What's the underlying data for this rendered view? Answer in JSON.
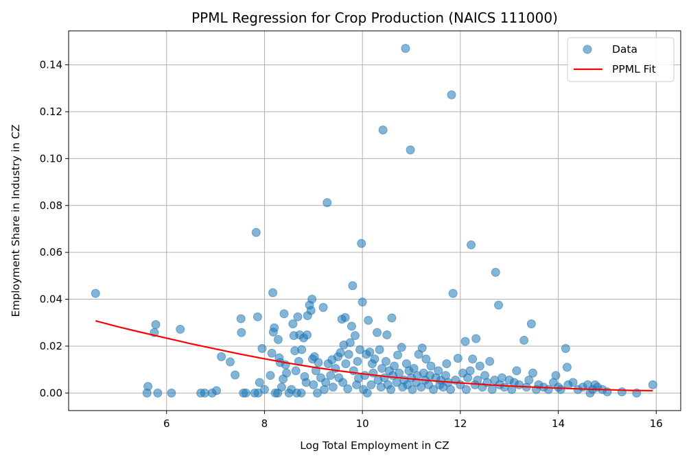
{
  "chart_data": {
    "type": "scatter",
    "title": "PPML Regression for Crop Production (NAICS 111000)",
    "xlabel": "Log Total Employment in CZ",
    "ylabel": "Employment Share in Industry in CZ",
    "xlim": [
      4.0,
      16.5
    ],
    "ylim": [
      -0.0075,
      0.1545
    ],
    "xticks": [
      6,
      8,
      10,
      12,
      14,
      16
    ],
    "xtick_labels": [
      "6",
      "8",
      "10",
      "12",
      "14",
      "16"
    ],
    "yticks": [
      0.0,
      0.02,
      0.04,
      0.06,
      0.08,
      0.1,
      0.12,
      0.14
    ],
    "ytick_labels": [
      "0.00",
      "0.02",
      "0.04",
      "0.06",
      "0.08",
      "0.10",
      "0.12",
      "0.14"
    ],
    "grid": true,
    "legend": {
      "position": "top-right",
      "entries": [
        {
          "label": "Data",
          "marker": "circle",
          "color": "#1f77b4"
        },
        {
          "label": "PPML Fit",
          "marker": "line",
          "color": "#ff0000"
        }
      ]
    },
    "series": [
      {
        "name": "Data",
        "color": "#1f77b4",
        "opacity": 0.55,
        "points": [
          [
            4.55,
            0.0425
          ],
          [
            5.62,
            0.0028
          ],
          [
            5.6,
            0.0
          ],
          [
            5.75,
            0.0258
          ],
          [
            5.78,
            0.0292
          ],
          [
            5.82,
            0.0
          ],
          [
            6.1,
            0.0
          ],
          [
            6.28,
            0.0272
          ],
          [
            6.7,
            0.0
          ],
          [
            6.78,
            0.0
          ],
          [
            6.93,
            0.0
          ],
          [
            7.02,
            0.001
          ],
          [
            7.12,
            0.0155
          ],
          [
            7.3,
            0.0133
          ],
          [
            7.4,
            0.0077
          ],
          [
            7.52,
            0.0317
          ],
          [
            7.53,
            0.0258
          ],
          [
            7.57,
            0.0
          ],
          [
            7.62,
            0.0
          ],
          [
            7.8,
            0.0
          ],
          [
            7.83,
            0.0685
          ],
          [
            7.86,
            0.0325
          ],
          [
            7.87,
            0.0
          ],
          [
            7.9,
            0.0045
          ],
          [
            7.95,
            0.019
          ],
          [
            8.0,
            0.0015
          ],
          [
            8.12,
            0.0075
          ],
          [
            8.15,
            0.017
          ],
          [
            8.17,
            0.0428
          ],
          [
            8.18,
            0.026
          ],
          [
            8.2,
            0.0278
          ],
          [
            8.22,
            0.0
          ],
          [
            8.27,
            0.0
          ],
          [
            8.28,
            0.0228
          ],
          [
            8.3,
            0.015
          ],
          [
            8.32,
            0.013
          ],
          [
            8.35,
            0.0025
          ],
          [
            8.38,
            0.006
          ],
          [
            8.4,
            0.0338
          ],
          [
            8.43,
            0.012
          ],
          [
            8.45,
            0.0085
          ],
          [
            8.5,
            0.0
          ],
          [
            8.55,
            0.0015
          ],
          [
            8.58,
            0.0295
          ],
          [
            8.6,
            0.0245
          ],
          [
            8.62,
            0.018
          ],
          [
            8.64,
            0.0095
          ],
          [
            8.66,
            0.0
          ],
          [
            8.68,
            0.0325
          ],
          [
            8.7,
            0.0135
          ],
          [
            8.72,
            0.0248
          ],
          [
            8.75,
            0.0
          ],
          [
            8.76,
            0.0185
          ],
          [
            8.8,
            0.0235
          ],
          [
            8.82,
            0.007
          ],
          [
            8.85,
            0.0045
          ],
          [
            8.87,
            0.0248
          ],
          [
            8.88,
            0.033
          ],
          [
            8.92,
            0.0375
          ],
          [
            8.95,
            0.0352
          ],
          [
            8.97,
            0.04
          ],
          [
            8.98,
            0.0145
          ],
          [
            9.0,
            0.0035
          ],
          [
            9.02,
            0.0155
          ],
          [
            9.05,
            0.0095
          ],
          [
            9.08,
            0.0
          ],
          [
            9.1,
            0.013
          ],
          [
            9.15,
            0.0065
          ],
          [
            9.2,
            0.0365
          ],
          [
            9.22,
            0.0015
          ],
          [
            9.25,
            0.0045
          ],
          [
            9.28,
            0.0812
          ],
          [
            9.3,
            0.0125
          ],
          [
            9.35,
            0.0075
          ],
          [
            9.38,
            0.0142
          ],
          [
            9.4,
            0.0025
          ],
          [
            9.45,
            0.0105
          ],
          [
            9.5,
            0.0155
          ],
          [
            9.52,
            0.0065
          ],
          [
            9.55,
            0.0172
          ],
          [
            9.58,
            0.0315
          ],
          [
            9.6,
            0.0045
          ],
          [
            9.62,
            0.0205
          ],
          [
            9.65,
            0.0322
          ],
          [
            9.66,
            0.0125
          ],
          [
            9.7,
            0.0018
          ],
          [
            9.72,
            0.0165
          ],
          [
            9.75,
            0.0215
          ],
          [
            9.78,
            0.0285
          ],
          [
            9.8,
            0.0458
          ],
          [
            9.82,
            0.0095
          ],
          [
            9.85,
            0.0245
          ],
          [
            9.88,
            0.0035
          ],
          [
            9.9,
            0.0135
          ],
          [
            9.92,
            0.0062
          ],
          [
            9.95,
            0.0185
          ],
          [
            9.98,
            0.0638
          ],
          [
            10.0,
            0.0388
          ],
          [
            10.02,
            0.0015
          ],
          [
            10.05,
            0.0075
          ],
          [
            10.08,
            0.0165
          ],
          [
            10.1,
            0.0
          ],
          [
            10.12,
            0.031
          ],
          [
            10.15,
            0.0175
          ],
          [
            10.18,
            0.0035
          ],
          [
            10.2,
            0.0125
          ],
          [
            10.22,
            0.0085
          ],
          [
            10.25,
            0.0145
          ],
          [
            10.3,
            0.0258
          ],
          [
            10.32,
            0.0055
          ],
          [
            10.35,
            0.0185
          ],
          [
            10.38,
            0.0025
          ],
          [
            10.4,
            0.0105
          ],
          [
            10.42,
            0.1122
          ],
          [
            10.45,
            0.0065
          ],
          [
            10.48,
            0.0135
          ],
          [
            10.5,
            0.0248
          ],
          [
            10.52,
            0.0035
          ],
          [
            10.55,
            0.0095
          ],
          [
            10.58,
            0.0015
          ],
          [
            10.6,
            0.032
          ],
          [
            10.62,
            0.0075
          ],
          [
            10.65,
            0.0115
          ],
          [
            10.7,
            0.0045
          ],
          [
            10.72,
            0.0162
          ],
          [
            10.75,
            0.0085
          ],
          [
            10.8,
            0.0195
          ],
          [
            10.82,
            0.0025
          ],
          [
            10.85,
            0.0055
          ],
          [
            10.88,
            0.147
          ],
          [
            10.9,
            0.0125
          ],
          [
            10.92,
            0.0035
          ],
          [
            10.95,
            0.0095
          ],
          [
            10.98,
            0.1037
          ],
          [
            11.0,
            0.0065
          ],
          [
            11.02,
            0.0015
          ],
          [
            11.05,
            0.0105
          ],
          [
            11.1,
            0.0045
          ],
          [
            11.12,
            0.0075
          ],
          [
            11.15,
            0.0165
          ],
          [
            11.2,
            0.0025
          ],
          [
            11.22,
            0.0192
          ],
          [
            11.25,
            0.0085
          ],
          [
            11.28,
            0.0055
          ],
          [
            11.3,
            0.0145
          ],
          [
            11.35,
            0.0035
          ],
          [
            11.38,
            0.0075
          ],
          [
            11.4,
            0.0115
          ],
          [
            11.45,
            0.0015
          ],
          [
            11.5,
            0.0065
          ],
          [
            11.55,
            0.0095
          ],
          [
            11.58,
            0.0035
          ],
          [
            11.6,
            0.0055
          ],
          [
            11.65,
            0.0025
          ],
          [
            11.7,
            0.0075
          ],
          [
            11.72,
            0.0125
          ],
          [
            11.75,
            0.0045
          ],
          [
            11.8,
            0.0015
          ],
          [
            11.82,
            0.1272
          ],
          [
            11.85,
            0.0425
          ],
          [
            11.9,
            0.0055
          ],
          [
            11.95,
            0.0148
          ],
          [
            12.0,
            0.0035
          ],
          [
            12.05,
            0.0085
          ],
          [
            12.1,
            0.022
          ],
          [
            12.12,
            0.0015
          ],
          [
            12.15,
            0.0065
          ],
          [
            12.2,
            0.0095
          ],
          [
            12.22,
            0.0632
          ],
          [
            12.25,
            0.0145
          ],
          [
            12.3,
            0.0035
          ],
          [
            12.32,
            0.0232
          ],
          [
            12.35,
            0.0055
          ],
          [
            12.4,
            0.0115
          ],
          [
            12.45,
            0.0025
          ],
          [
            12.5,
            0.0075
          ],
          [
            12.55,
            0.0045
          ],
          [
            12.6,
            0.0135
          ],
          [
            12.65,
            0.0015
          ],
          [
            12.7,
            0.0055
          ],
          [
            12.72,
            0.0515
          ],
          [
            12.78,
            0.0375
          ],
          [
            12.8,
            0.0035
          ],
          [
            12.85,
            0.0065
          ],
          [
            12.9,
            0.0025
          ],
          [
            13.0,
            0.0055
          ],
          [
            13.05,
            0.0015
          ],
          [
            13.1,
            0.0045
          ],
          [
            13.15,
            0.0095
          ],
          [
            13.2,
            0.0035
          ],
          [
            13.3,
            0.0225
          ],
          [
            13.35,
            0.0025
          ],
          [
            13.4,
            0.0055
          ],
          [
            13.45,
            0.0295
          ],
          [
            13.48,
            0.0085
          ],
          [
            13.55,
            0.0015
          ],
          [
            13.6,
            0.0035
          ],
          [
            13.7,
            0.0025
          ],
          [
            13.8,
            0.0015
          ],
          [
            13.9,
            0.0045
          ],
          [
            13.95,
            0.0075
          ],
          [
            14.0,
            0.0025
          ],
          [
            14.05,
            0.0015
          ],
          [
            14.15,
            0.019
          ],
          [
            14.18,
            0.011
          ],
          [
            14.2,
            0.0035
          ],
          [
            14.3,
            0.0045
          ],
          [
            14.4,
            0.0015
          ],
          [
            14.5,
            0.0025
          ],
          [
            14.6,
            0.0035
          ],
          [
            14.65,
            0.0
          ],
          [
            14.7,
            0.0015
          ],
          [
            14.75,
            0.0035
          ],
          [
            14.8,
            0.0025
          ],
          [
            14.9,
            0.0015
          ],
          [
            15.0,
            0.0005
          ],
          [
            15.3,
            0.0005
          ],
          [
            15.6,
            0.0
          ],
          [
            15.93,
            0.0035
          ]
        ]
      },
      {
        "name": "PPML Fit",
        "color": "#ff0000",
        "type": "line",
        "points": [
          [
            4.55,
            0.0308
          ],
          [
            5.0,
            0.0283
          ],
          [
            5.5,
            0.0258
          ],
          [
            6.0,
            0.0234
          ],
          [
            6.5,
            0.021
          ],
          [
            7.0,
            0.0188
          ],
          [
            7.5,
            0.0166
          ],
          [
            8.0,
            0.0146
          ],
          [
            8.5,
            0.0127
          ],
          [
            9.0,
            0.011
          ],
          [
            9.5,
            0.0095
          ],
          [
            10.0,
            0.0082
          ],
          [
            10.5,
            0.007
          ],
          [
            11.0,
            0.006
          ],
          [
            11.5,
            0.0051
          ],
          [
            12.0,
            0.0043
          ],
          [
            12.5,
            0.0036
          ],
          [
            13.0,
            0.003
          ],
          [
            13.5,
            0.0025
          ],
          [
            14.0,
            0.0021
          ],
          [
            14.5,
            0.0017
          ],
          [
            15.0,
            0.0014
          ],
          [
            15.5,
            0.0011
          ],
          [
            15.93,
            0.001
          ]
        ]
      }
    ]
  }
}
